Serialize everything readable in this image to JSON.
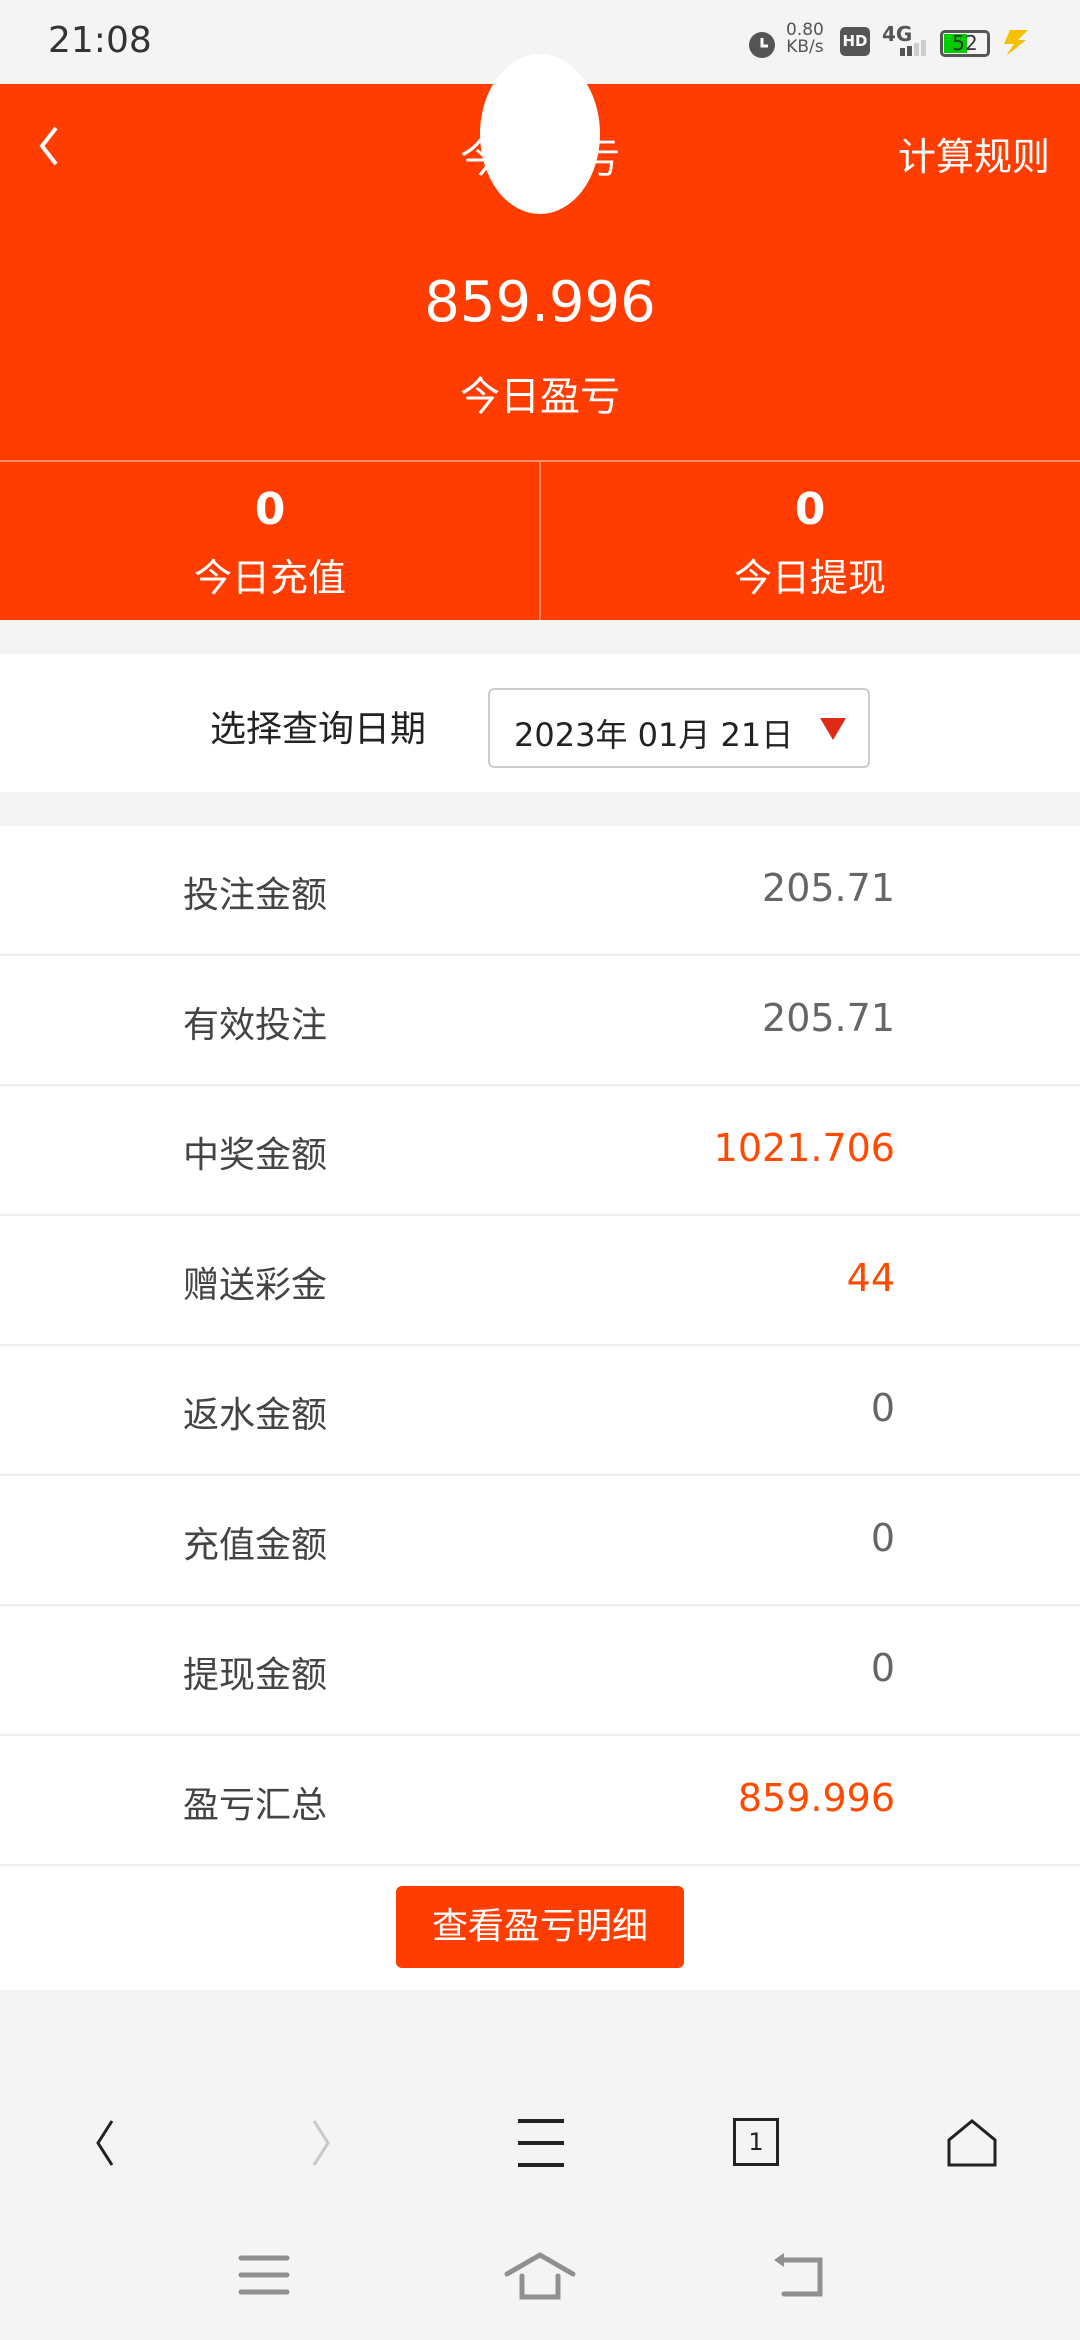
{
  "status_bar": {
    "time": "21:08",
    "net_speed": "0.80",
    "net_unit": "KB/s",
    "hd": "HD",
    "network": "4G",
    "battery": "52"
  },
  "header": {
    "title": "今日盈亏",
    "rules_link": "计算规则"
  },
  "summary": {
    "profit_value": "859.996",
    "profit_label": "今日盈亏",
    "recharge_value": "0",
    "recharge_label": "今日充值",
    "withdraw_value": "0",
    "withdraw_label": "今日提现"
  },
  "date_filter": {
    "label": "选择查询日期",
    "value": "2023年 01月 21日"
  },
  "rows": [
    {
      "label": "投注金额",
      "value": "205.71",
      "highlight": false
    },
    {
      "label": "有效投注",
      "value": "205.71",
      "highlight": false
    },
    {
      "label": "中奖金额",
      "value": "1021.706",
      "highlight": true
    },
    {
      "label": "赠送彩金",
      "value": "44",
      "highlight": true
    },
    {
      "label": "返水金额",
      "value": "0",
      "highlight": false
    },
    {
      "label": "充值金额",
      "value": "0",
      "highlight": false
    },
    {
      "label": "提现金额",
      "value": "0",
      "highlight": false
    },
    {
      "label": "盈亏汇总",
      "value": "859.996",
      "highlight": true
    }
  ],
  "detail_button": "查看盈亏明细",
  "browser_nav": {
    "tab_count": "1"
  },
  "colors": {
    "brand": "#ff3d00",
    "highlight": "#ff4a00"
  }
}
